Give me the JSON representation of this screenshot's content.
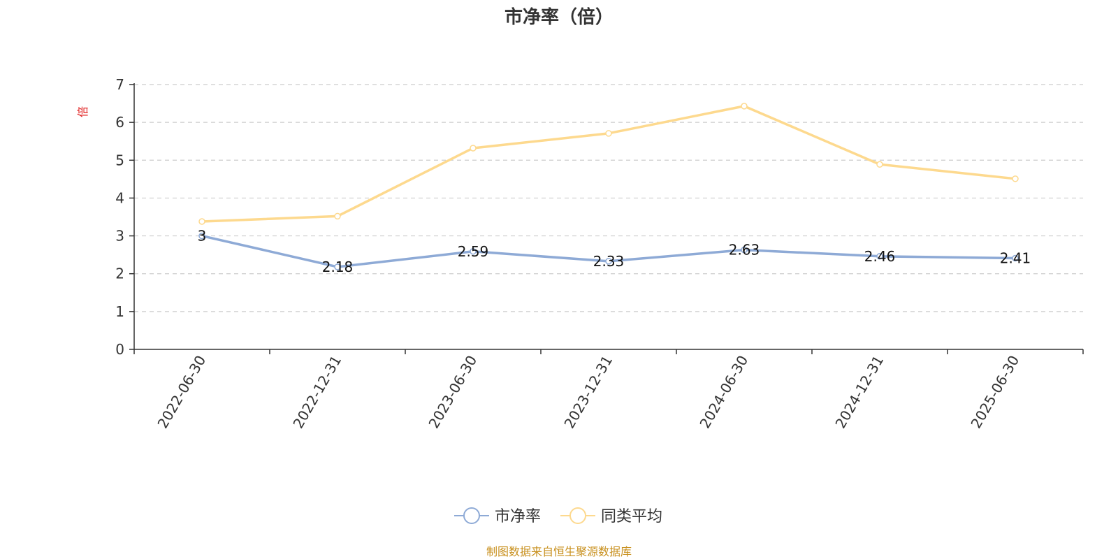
{
  "chart_data": {
    "type": "line",
    "title": "市净率（倍）",
    "unit": "倍",
    "categories": [
      "2022-06-30",
      "2022-12-31",
      "2023-06-30",
      "2023-12-31",
      "2024-06-30",
      "2024-12-31",
      "2025-06-30"
    ],
    "ylim": [
      0,
      7
    ],
    "yticks": [
      0,
      1,
      2,
      3,
      4,
      5,
      6,
      7
    ],
    "grid": true,
    "legend_position": "bottom",
    "series": [
      {
        "name": "市净率",
        "color": "#8eaad6",
        "values": [
          3,
          2.18,
          2.59,
          2.33,
          2.63,
          2.46,
          2.41
        ],
        "labels": [
          "3",
          "2.18",
          "2.59",
          "2.33",
          "2.63",
          "2.46",
          "2.41"
        ]
      },
      {
        "name": "同类平均",
        "color": "#fdd98e",
        "values": [
          3.38,
          3.52,
          5.32,
          5.71,
          6.43,
          4.89,
          4.51
        ]
      }
    ]
  },
  "unit_color": "#e02020",
  "source_text": "制图数据来自恒生聚源数据库",
  "source_color": "#c8901e"
}
